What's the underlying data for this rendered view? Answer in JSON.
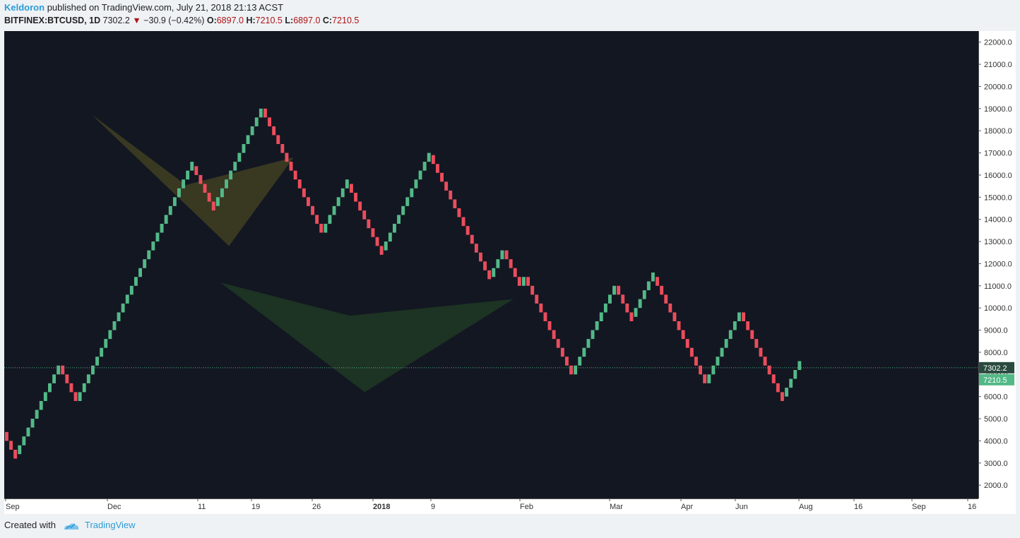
{
  "header": {
    "author": "Keldoron",
    "published_text": "published on TradingView.com, July 21, 2018 21:13 ACST",
    "symbol": "BITFINEX:BTCUSD, 1D",
    "last": "7302.2",
    "change_arrow": "▼",
    "change": "−30.9 (−0.42%)",
    "o_label": "O:",
    "o": "6897.0",
    "h_label": "H:",
    "h": "7210.5",
    "l_label": "L:",
    "l": "6897.0",
    "c_label": "C:",
    "c": "7210.5"
  },
  "footer": {
    "created_with": "Created with",
    "brand": "TradingView"
  },
  "colors": {
    "background": "#131722",
    "up": "#53b987",
    "down": "#eb4d5c",
    "pattern_brown": "#3b3a22",
    "pattern_green": "#1d3524",
    "last_price_tag": "#2a4a3f",
    "close_price_tag": "#53b987"
  },
  "chart_data": {
    "type": "renko",
    "symbol": "BITFINEX:BTCUSD",
    "interval": "1D",
    "brick_size": 400,
    "y_range": [
      1400,
      22500
    ],
    "y_ticks": [
      "22000.0",
      "21000.0",
      "20000.0",
      "19000.0",
      "18000.0",
      "17000.0",
      "16000.0",
      "15000.0",
      "14000.0",
      "13000.0",
      "12000.0",
      "11000.0",
      "10000.0",
      "9000.0",
      "8000.0",
      "7000.0",
      "6000.0",
      "5000.0",
      "4000.0",
      "3000.0",
      "2000.0"
    ],
    "x_ticks": [
      "Sep",
      "Dec",
      "11",
      "19",
      "26",
      "2018",
      "9",
      "Feb",
      "Mar",
      "Apr",
      "Jun",
      "Aug",
      "16",
      "Sep",
      "16"
    ],
    "x_ticks_bold": [
      "2018"
    ],
    "reversal_turns": [
      4400,
      3400,
      7400,
      5800,
      16400,
      14600,
      19000,
      13400,
      15600,
      12600,
      16900,
      11400,
      12600,
      11000,
      11400,
      7000,
      11000,
      9600,
      11400,
      6600,
      9800,
      6000,
      7400
    ],
    "last_price": "7302.2",
    "last_price_value": 7302.2,
    "close_price": "7210.5",
    "close_price_value": 7210.5,
    "patterns": [
      {
        "name": "bearish pattern (completed)",
        "points": [
          [
            20,
            18750
          ],
          [
            42,
            15550
          ],
          [
            67,
            16800
          ],
          [
            52,
            12800
          ]
        ]
      },
      {
        "name": "bullish pattern (projected)",
        "points": [
          [
            50,
            11150
          ],
          [
            80,
            9650
          ],
          [
            118,
            10400
          ],
          [
            83.5,
            6200
          ]
        ]
      }
    ]
  }
}
